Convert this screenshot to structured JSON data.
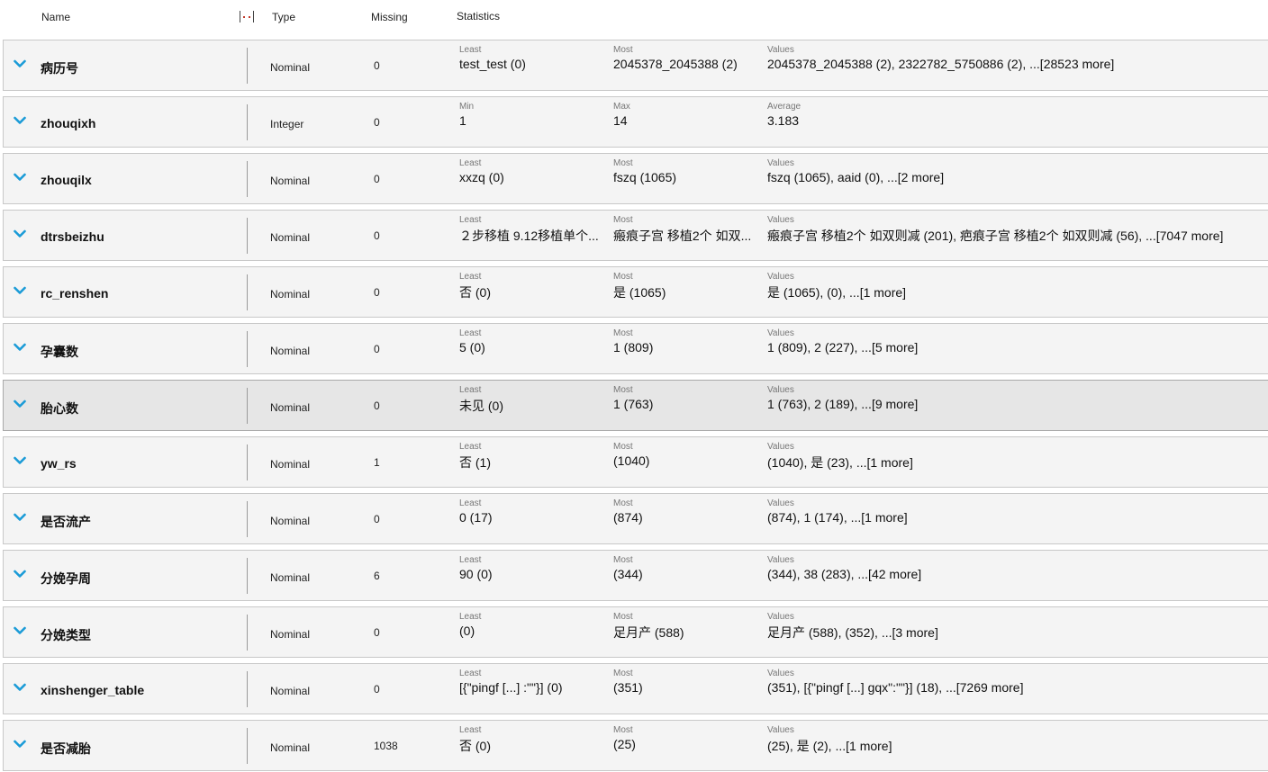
{
  "header": {
    "name": "Name",
    "type": "Type",
    "missing": "Missing",
    "statistics": "Statistics"
  },
  "rows": [
    {
      "name": "病历号",
      "type": "Nominal",
      "missing": "0",
      "l1": "Least",
      "v1": "test_test (0)",
      "l2": "Most",
      "v2": "2045378_2045388 (2)",
      "l3": "Values",
      "v3": "2045378_2045388 (2), 2322782_5750886 (2), ...[28523 more]"
    },
    {
      "name": "zhouqixh",
      "type": "Integer",
      "missing": "0",
      "l1": "Min",
      "v1": "1",
      "l2": "Max",
      "v2": "14",
      "l3": "Average",
      "v3": "3.183"
    },
    {
      "name": "zhouqilx",
      "type": "Nominal",
      "missing": "0",
      "l1": "Least",
      "v1": "xxzq (0)",
      "l2": "Most",
      "v2": "fszq (1065)",
      "l3": "Values",
      "v3": "fszq (1065), aaid (0), ...[2 more]"
    },
    {
      "name": "dtrsbeizhu",
      "type": "Nominal",
      "missing": "0",
      "l1": "Least",
      "v1": "２步移植 9.12移植单个...",
      "l2": "Most",
      "v2": "瘢痕子宫 移植2个 如双...",
      "l3": "Values",
      "v3": "瘢痕子宫 移植2个 如双则减 (201), 疤痕子宫 移植2个 如双则减 (56), ...[7047 more]"
    },
    {
      "name": "rc_renshen",
      "type": "Nominal",
      "missing": "0",
      "l1": "Least",
      "v1": "否 (0)",
      "l2": "Most",
      "v2": "是 (1065)",
      "l3": "Values",
      "v3": "是 (1065),  (0), ...[1 more]"
    },
    {
      "name": "孕囊数",
      "type": "Nominal",
      "missing": "0",
      "l1": "Least",
      "v1": "5 (0)",
      "l2": "Most",
      "v2": "1 (809)",
      "l3": "Values",
      "v3": "1 (809), 2 (227), ...[5 more]"
    },
    {
      "name": "胎心数",
      "type": "Nominal",
      "missing": "0",
      "l1": "Least",
      "v1": "未见 (0)",
      "l2": "Most",
      "v2": "1 (763)",
      "l3": "Values",
      "v3": "1 (763), 2 (189), ...[9 more]",
      "selected": true
    },
    {
      "name": "yw_rs",
      "type": "Nominal",
      "missing": "1",
      "l1": "Least",
      "v1": "否 (1)",
      "l2": "Most",
      "v2": " (1040)",
      "l3": "Values",
      "v3": " (1040), 是 (23), ...[1 more]"
    },
    {
      "name": "是否流产",
      "type": "Nominal",
      "missing": "0",
      "l1": "Least",
      "v1": "0 (17)",
      "l2": "Most",
      "v2": " (874)",
      "l3": "Values",
      "v3": " (874), 1 (174), ...[1 more]"
    },
    {
      "name": "分娩孕周",
      "type": "Nominal",
      "missing": "6",
      "l1": "Least",
      "v1": "90 (0)",
      "l2": "Most",
      "v2": " (344)",
      "l3": "Values",
      "v3": " (344), 38 (283), ...[42 more]"
    },
    {
      "name": "分娩类型",
      "type": "Nominal",
      "missing": "0",
      "l1": "Least",
      "v1": "        (0)",
      "l2": "Most",
      "v2": "足月产 (588)",
      "l3": "Values",
      "v3": "足月产 (588),  (352), ...[3 more]"
    },
    {
      "name": "xinshenger_table",
      "type": "Nominal",
      "missing": "0",
      "l1": "Least",
      "v1": "[{\"pingf [...] :\"\"}] (0)",
      "l2": "Most",
      "v2": " (351)",
      "l3": "Values",
      "v3": " (351), [{\"pingf [...] gqx\":\"\"}] (18), ...[7269 more]"
    },
    {
      "name": "是否减胎",
      "type": "Nominal",
      "missing": "1038",
      "l1": "Least",
      "v1": "否 (0)",
      "l2": "Most",
      "v2": " (25)",
      "l3": "Values",
      "v3": " (25), 是 (2), ...[1 more]"
    }
  ],
  "colors": {
    "chevron": "#1a9bd7",
    "row_bg": "#f4f4f4",
    "row_selected_bg": "#e6e6e6"
  }
}
